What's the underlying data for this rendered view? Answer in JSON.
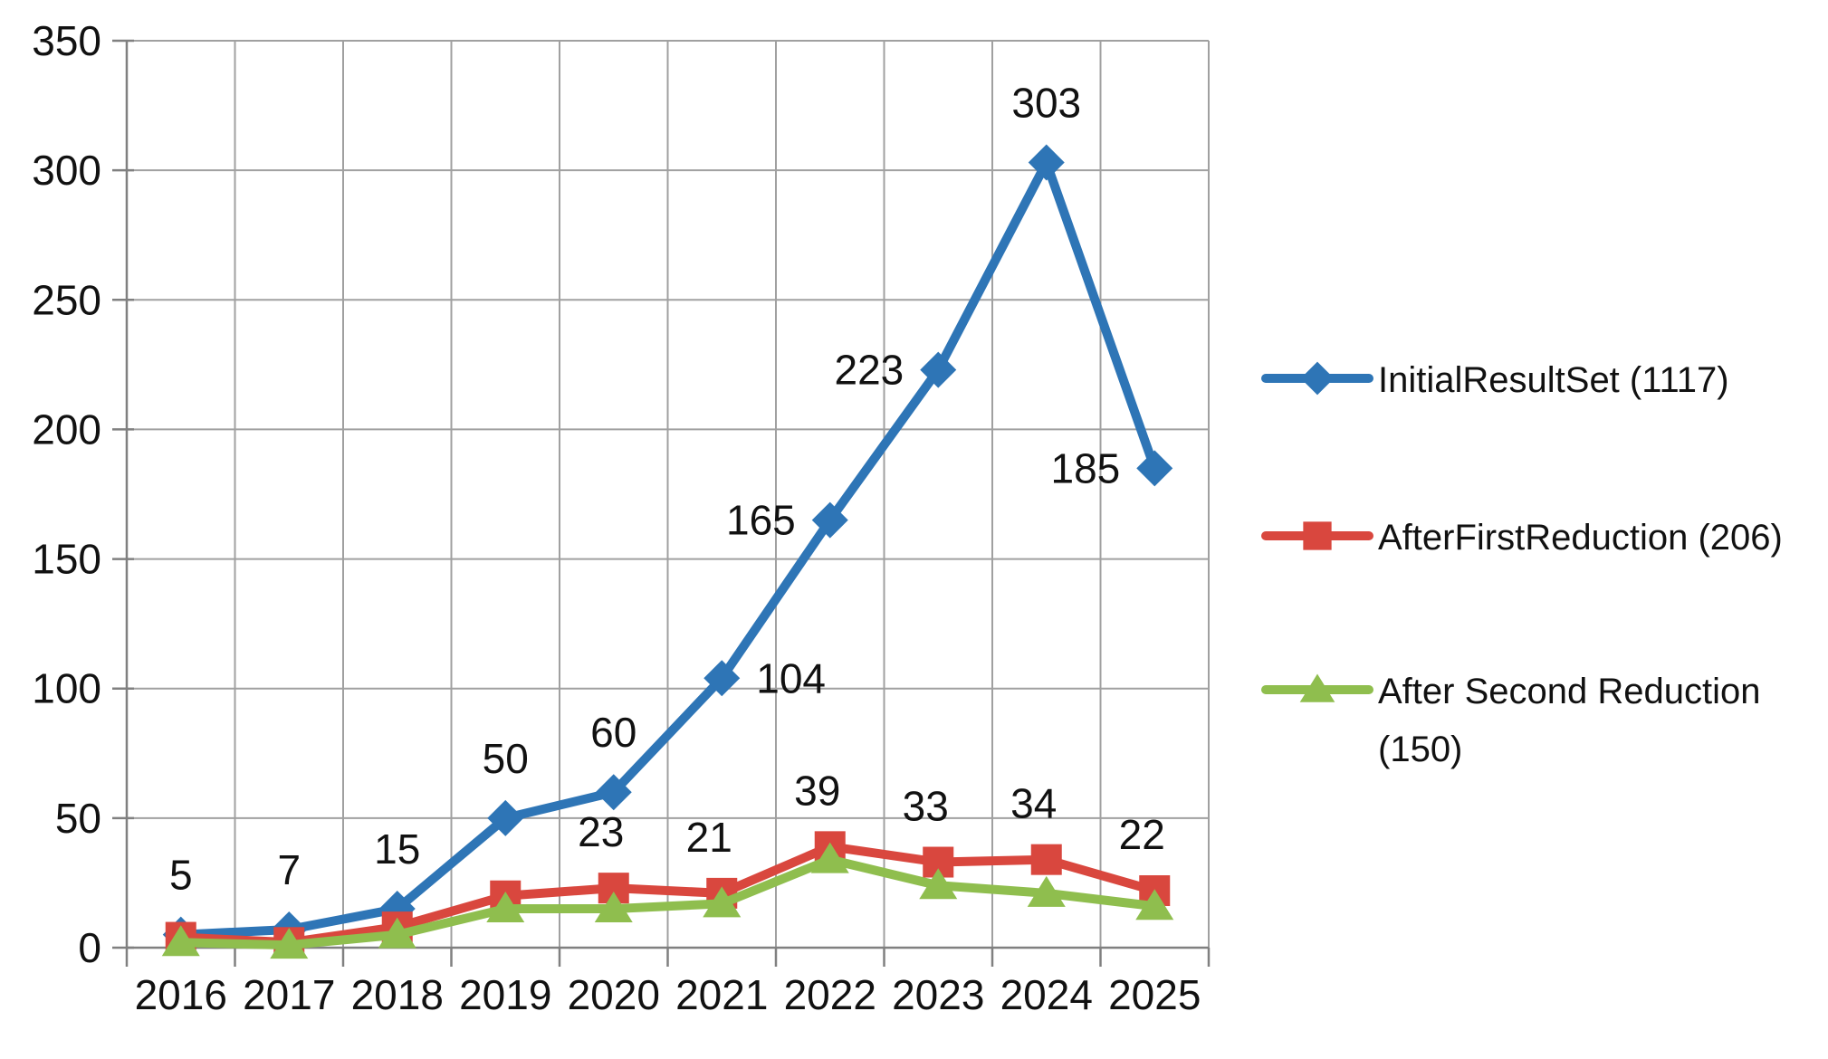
{
  "page": {
    "background": "#FFFFFF"
  },
  "chart_data": {
    "type": "line",
    "title": "",
    "xlabel": "",
    "ylabel": "",
    "x_categories": [
      "2016",
      "2017",
      "2018",
      "2019",
      "2020",
      "2021",
      "2022",
      "2023",
      "2024",
      "2025"
    ],
    "yticks": [
      "0",
      "50",
      "100",
      "150",
      "200",
      "250",
      "300",
      "350"
    ],
    "ylim": [
      0,
      350
    ],
    "ytick_step": 50,
    "grid": true,
    "grid_color": "#A0A0A0",
    "axis_color": "#808080",
    "text_color": "#111111",
    "legend_position": "right",
    "series": [
      {
        "name": "InitialResultSet (1117)",
        "color": "#2E75B6",
        "marker": "diamond",
        "values": [
          5,
          7,
          15,
          50,
          60,
          104,
          165,
          223,
          303,
          185
        ],
        "data_labels": [
          "5",
          "7",
          "15",
          "50",
          "60",
          "104",
          "165",
          "223",
          "303",
          "185"
        ],
        "label_anchors": [
          "above",
          "above",
          "above",
          "above",
          "above",
          "right",
          "left",
          "left",
          "above",
          "left"
        ]
      },
      {
        "name": "AfterFirstReduction (206)",
        "color": "#D9473E",
        "marker": "square",
        "values": [
          4,
          2,
          8,
          20,
          23,
          21,
          39,
          33,
          34,
          22
        ],
        "data_labels": [
          null,
          null,
          null,
          null,
          "23",
          "21",
          "39",
          "33",
          "34",
          "22"
        ],
        "label_anchors": [
          "above",
          "above",
          "above",
          "above",
          "above",
          "above",
          "above",
          "above",
          "above",
          "above"
        ]
      },
      {
        "name": "After Second Reduction (150)",
        "color": "#8FBE4E",
        "marker": "triangle",
        "values": [
          2,
          1,
          5,
          15,
          15,
          17,
          34,
          24,
          21,
          16
        ],
        "data_labels": [
          null,
          null,
          null,
          null,
          null,
          null,
          null,
          null,
          null,
          null
        ],
        "label_anchors": []
      }
    ]
  }
}
